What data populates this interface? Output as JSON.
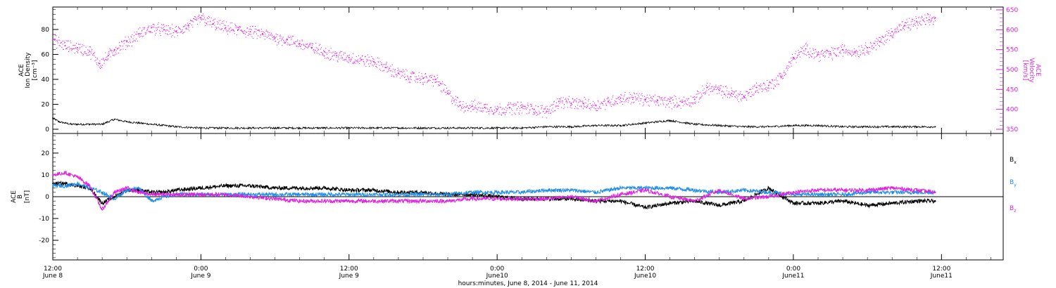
{
  "colors": {
    "black": "#000000",
    "magenta": "#e020e0",
    "blue": "#1f8ee8"
  },
  "x_axis": {
    "tick_labels": [
      {
        "t": 0,
        "time": "12:00",
        "date": "June 8"
      },
      {
        "t": 12,
        "time": "0:00",
        "date": "June 9"
      },
      {
        "t": 24,
        "time": "12:00",
        "date": "June 9"
      },
      {
        "t": 36,
        "time": "0:00",
        "date": "June10"
      },
      {
        "t": 48,
        "time": "12:00",
        "date": "June10"
      },
      {
        "t": 60,
        "time": "0:00",
        "date": "June11"
      },
      {
        "t": 72,
        "time": "12:00",
        "date": "June11"
      }
    ],
    "title": "hours:minutes, June  8, 2014 - June 11, 2014",
    "range_hours": [
      0,
      77
    ]
  },
  "top_panel": {
    "left_label": [
      "ACE",
      "Ion Density",
      "[cm⁻³]"
    ],
    "right_label": [
      "ACE",
      "Velocity",
      "[km/s]"
    ],
    "left_ticks": [
      "0",
      "20",
      "40",
      "60",
      "80"
    ],
    "right_ticks": [
      "350",
      "400",
      "450",
      "500",
      "550",
      "600",
      "650"
    ]
  },
  "bottom_panel": {
    "left_label": [
      "ACE",
      "B",
      "[nT]"
    ],
    "left_ticks": [
      "-20",
      "-10",
      "0",
      "10",
      "20"
    ],
    "legend": [
      {
        "base": "B",
        "sub": "x",
        "color": "#000000"
      },
      {
        "base": "B",
        "sub": "y",
        "color": "#1f8ee8"
      },
      {
        "base": "B",
        "sub": "z",
        "color": "#e020e0"
      }
    ]
  },
  "chart_data": [
    {
      "type": "scatter",
      "title": "",
      "xlabel": "hours:minutes, June  8, 2014 - June 11, 2014",
      "ylabel": "ACE Ion Density [cm⁻³]",
      "y2label": "ACE Velocity [km/s]",
      "xlim_hours_from_June8_1200": [
        0,
        77
      ],
      "ylim": [
        0,
        98
      ],
      "y2lim": [
        350,
        650
      ],
      "series": [
        {
          "axis": "left",
          "color": "#000000",
          "x": [
            0,
            0.5,
            1,
            1.5,
            2,
            3,
            4,
            5,
            6,
            7,
            8,
            10,
            12,
            14,
            16,
            18,
            20,
            22,
            24,
            26,
            28,
            30,
            32,
            34,
            36,
            38,
            40,
            42,
            44,
            46,
            48,
            50,
            52,
            54,
            56,
            58,
            60,
            62,
            64,
            66,
            68,
            70,
            71.5
          ],
          "values": [
            9,
            6,
            5,
            4,
            4,
            4,
            4,
            8,
            6,
            5,
            4,
            2,
            1,
            1,
            1,
            1,
            1,
            1,
            1,
            1,
            1,
            1,
            1,
            1,
            1,
            1,
            2,
            2,
            3,
            3,
            5,
            7,
            4,
            3,
            2,
            2,
            3,
            3,
            2,
            2,
            2,
            2,
            2
          ]
        },
        {
          "axis": "right",
          "color": "#e020e0",
          "x": [
            0,
            1,
            2,
            3,
            3.8,
            4.5,
            5,
            6,
            7,
            8,
            9,
            10,
            11,
            12,
            13,
            14,
            15,
            16,
            17,
            18,
            19,
            20,
            21,
            22,
            23,
            24,
            25,
            26,
            27,
            28,
            29,
            30,
            31,
            32,
            33,
            34,
            35,
            36,
            37,
            38,
            39,
            40,
            41,
            42,
            43,
            44,
            45,
            46,
            47,
            48,
            49,
            50,
            51,
            52,
            53,
            54,
            55,
            56,
            57,
            58,
            59,
            60,
            61,
            62,
            63,
            64,
            65,
            66,
            67,
            68,
            69,
            70,
            71,
            71.5
          ],
          "values": [
            575,
            560,
            555,
            545,
            515,
            535,
            550,
            570,
            590,
            605,
            600,
            595,
            610,
            630,
            615,
            605,
            600,
            595,
            590,
            580,
            575,
            565,
            555,
            545,
            535,
            530,
            525,
            520,
            505,
            490,
            482,
            478,
            475,
            440,
            410,
            408,
            405,
            400,
            404,
            405,
            400,
            395,
            420,
            415,
            415,
            410,
            420,
            428,
            430,
            425,
            422,
            420,
            418,
            425,
            455,
            448,
            440,
            432,
            455,
            460,
            482,
            530,
            552,
            538,
            540,
            550,
            545,
            555,
            570,
            595,
            610,
            620,
            625,
            630
          ]
        }
      ]
    },
    {
      "type": "line",
      "title": "",
      "xlabel": "hours:minutes, June  8, 2014 - June 11, 2014",
      "ylabel": "ACE B [nT]",
      "xlim_hours_from_June8_1200": [
        0,
        77
      ],
      "ylim": [
        -29,
        29
      ],
      "series": [
        {
          "name": "Bx",
          "color": "#000000",
          "x": [
            0,
            1,
            2,
            3,
            4,
            5,
            6,
            7,
            8,
            9,
            10,
            12,
            14,
            16,
            18,
            20,
            22,
            24,
            26,
            28,
            30,
            32,
            34,
            36,
            38,
            40,
            42,
            44,
            46,
            48,
            50,
            52,
            54,
            56,
            58,
            60,
            62,
            64,
            66,
            68,
            70,
            71.5
          ],
          "values": [
            6,
            6,
            5,
            4,
            -3,
            0,
            3,
            3,
            2,
            2,
            3,
            4,
            5,
            5,
            4,
            4,
            4,
            3,
            3,
            2,
            2,
            1,
            1,
            0,
            -1,
            -1,
            -1,
            -2,
            -2,
            -5,
            -3,
            -2,
            -4,
            -2,
            4,
            -3,
            -3,
            -2,
            -4,
            -3,
            -2,
            -2
          ]
        },
        {
          "name": "By",
          "color": "#1f8ee8",
          "x": [
            0,
            1,
            2,
            3,
            4,
            5,
            6,
            7,
            8,
            9,
            10,
            12,
            14,
            16,
            18,
            20,
            22,
            24,
            26,
            28,
            30,
            32,
            34,
            36,
            38,
            40,
            42,
            44,
            46,
            48,
            50,
            52,
            54,
            56,
            58,
            60,
            62,
            64,
            66,
            68,
            70,
            71.5
          ],
          "values": [
            5,
            5,
            6,
            4,
            2,
            -1,
            3,
            4,
            -2,
            0,
            1,
            1,
            1,
            1,
            1,
            1,
            1,
            1,
            1,
            1,
            1,
            1,
            2,
            2,
            2,
            3,
            3,
            2,
            4,
            4,
            4,
            3,
            2,
            3,
            2,
            1,
            1,
            1,
            2,
            2,
            2,
            2
          ]
        },
        {
          "name": "Bz",
          "color": "#e020e0",
          "x": [
            0,
            1,
            2,
            3,
            4,
            5,
            6,
            7,
            8,
            9,
            10,
            12,
            14,
            16,
            18,
            20,
            22,
            24,
            26,
            28,
            30,
            32,
            34,
            36,
            38,
            40,
            42,
            44,
            46,
            48,
            50,
            52,
            54,
            56,
            58,
            60,
            62,
            64,
            66,
            68,
            70,
            71.5
          ],
          "values": [
            10,
            11,
            9,
            5,
            -6,
            2,
            4,
            2,
            1,
            1,
            1,
            1,
            1,
            0,
            -1,
            -2,
            -2,
            -2,
            -2,
            -2,
            -2,
            -2,
            -1,
            -1,
            -1,
            -1,
            0,
            -2,
            1,
            3,
            0,
            -2,
            3,
            -1,
            0,
            2,
            3,
            3,
            3,
            4,
            3,
            2
          ]
        }
      ]
    }
  ]
}
